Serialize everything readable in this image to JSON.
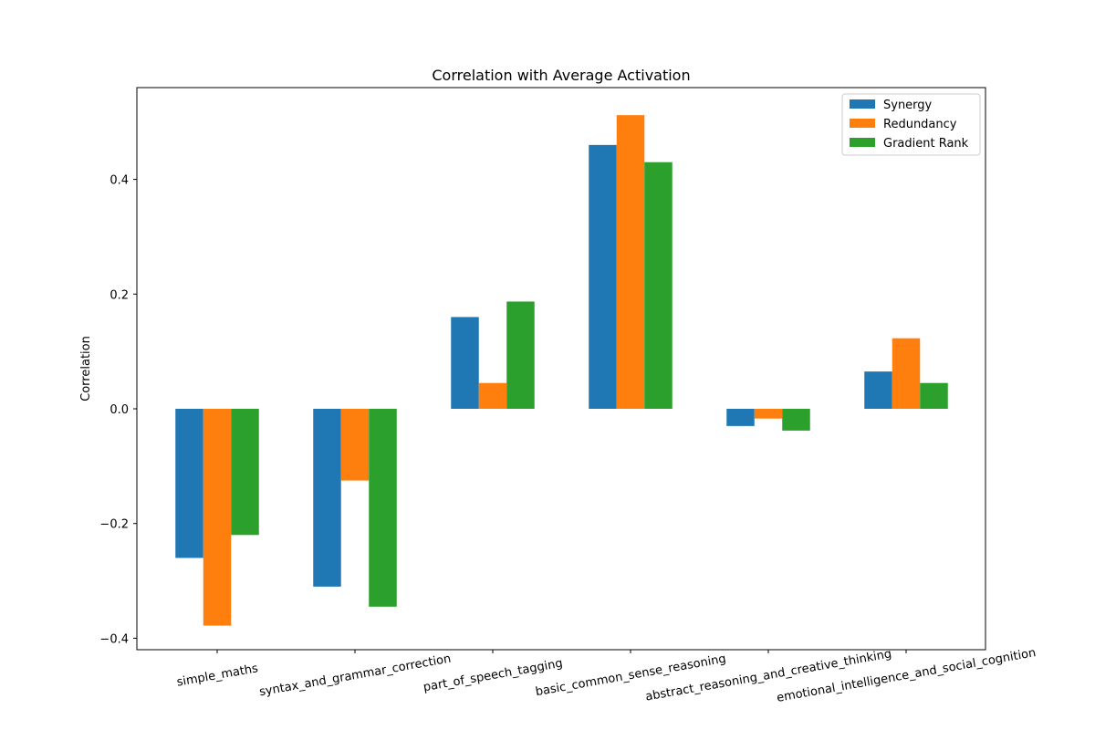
{
  "chart_data": {
    "type": "bar",
    "title": "Correlation with Average Activation",
    "xlabel": "",
    "ylabel": "Correlation",
    "ylim": [
      -0.42,
      0.56
    ],
    "yticks": [
      -0.4,
      -0.2,
      0.0,
      0.2,
      0.4
    ],
    "ytick_labels": [
      "−0.4",
      "−0.2",
      "0.0",
      "0.2",
      "0.4"
    ],
    "grid": false,
    "legend_position": "top-right",
    "categories": [
      "simple_maths",
      "syntax_and_grammar_correction",
      "part_of_speech_tagging",
      "basic_common_sense_reasoning",
      "abstract_reasoning_and_creative_thinking",
      "emotional_intelligence_and_social_cognition"
    ],
    "series": [
      {
        "name": "Synergy",
        "color": "#1f77b4",
        "values": [
          -0.26,
          -0.31,
          0.16,
          0.46,
          -0.03,
          0.065
        ]
      },
      {
        "name": "Redundancy",
        "color": "#ff7f0e",
        "values": [
          -0.378,
          -0.125,
          0.045,
          0.512,
          -0.017,
          0.123
        ]
      },
      {
        "name": "Gradient Rank",
        "color": "#2ca02c",
        "values": [
          -0.22,
          -0.345,
          0.187,
          0.43,
          -0.038,
          0.045
        ]
      }
    ]
  }
}
